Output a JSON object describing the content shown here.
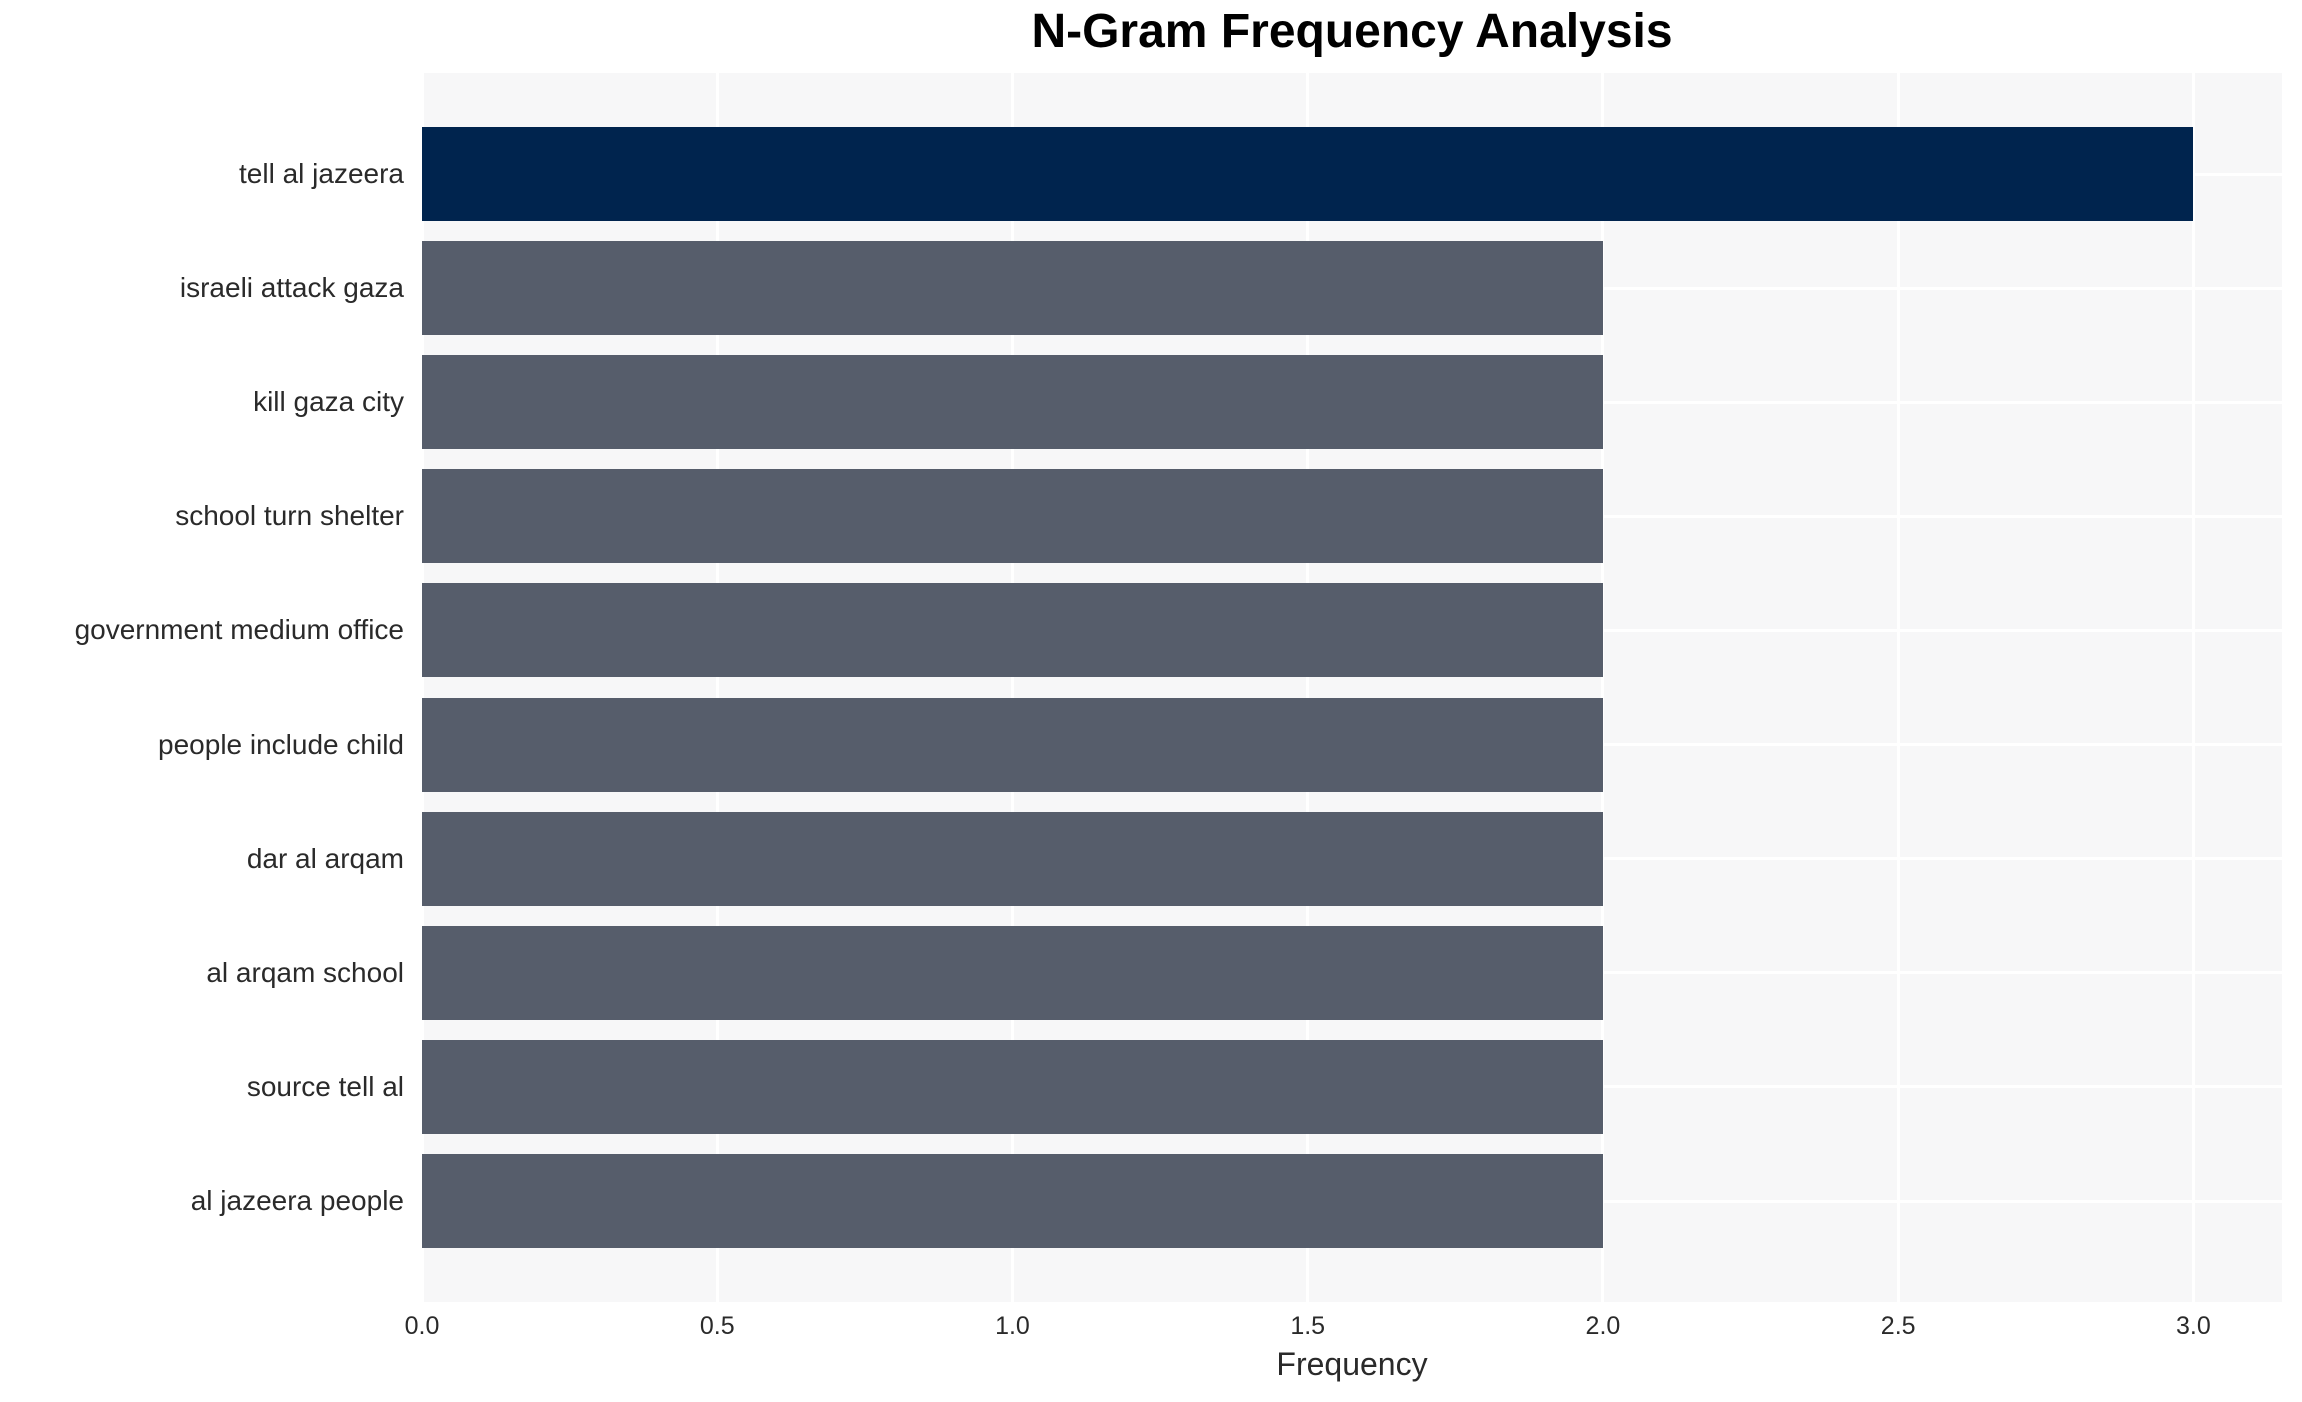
{
  "chart_data": {
    "type": "bar",
    "orientation": "horizontal",
    "title": "N-Gram Frequency Analysis",
    "xlabel": "Frequency",
    "ylabel": "",
    "categories": [
      "tell al jazeera",
      "israeli attack gaza",
      "kill gaza city",
      "school turn shelter",
      "government medium office",
      "people include child",
      "dar al arqam",
      "al arqam school",
      "source tell al",
      "al jazeera people"
    ],
    "values": [
      3,
      2,
      2,
      2,
      2,
      2,
      2,
      2,
      2,
      2
    ],
    "bar_colors": [
      "#00244E",
      "#565D6B",
      "#565D6B",
      "#565D6B",
      "#565D6B",
      "#565D6B",
      "#565D6B",
      "#565D6B",
      "#565D6B",
      "#565D6B"
    ],
    "xlim": [
      0,
      3.15
    ],
    "xtick_values": [
      0,
      0.5,
      1,
      1.5,
      2,
      2.5,
      3
    ],
    "xtick_labels": [
      "0.0",
      "0.5",
      "1.0",
      "1.5",
      "2.0",
      "2.5",
      "3.0"
    ],
    "grid": true,
    "legend_position": "none",
    "colors": {
      "highlight_bar": "#00244E",
      "default_bar": "#565D6B",
      "plot_background": "#f7f7f8",
      "gridline": "#ffffff",
      "page_background": "#ffffff",
      "title_text": "#000000",
      "axis_text": "#2a2a2a"
    }
  }
}
